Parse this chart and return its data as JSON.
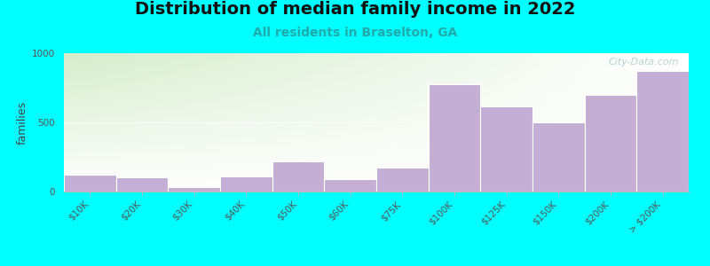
{
  "title": "Distribution of median family income in 2022",
  "subtitle": "All residents in Braselton, GA",
  "ylabel": "families",
  "categories": [
    "$10K",
    "$20K",
    "$30K",
    "$40K",
    "$50K",
    "$60K",
    "$75K",
    "$100K",
    "$125K",
    "$150K",
    "$200K",
    "> $200K"
  ],
  "values": [
    120,
    100,
    30,
    110,
    220,
    90,
    170,
    775,
    615,
    500,
    700,
    875
  ],
  "bar_color": "#C4AED4",
  "bar_edge_color": "#ffffff",
  "ylim": [
    0,
    1000
  ],
  "yticks": [
    0,
    500,
    1000
  ],
  "background_color": "#00FFFF",
  "grad_color_topleft": "#d6edcc",
  "grad_color_white": "#ffffff",
  "title_fontsize": 14,
  "subtitle_fontsize": 10,
  "subtitle_color": "#20AAAA",
  "ylabel_fontsize": 9,
  "tick_fontsize": 7.5,
  "watermark": "City-Data.com",
  "watermark_color": "#aacccc"
}
